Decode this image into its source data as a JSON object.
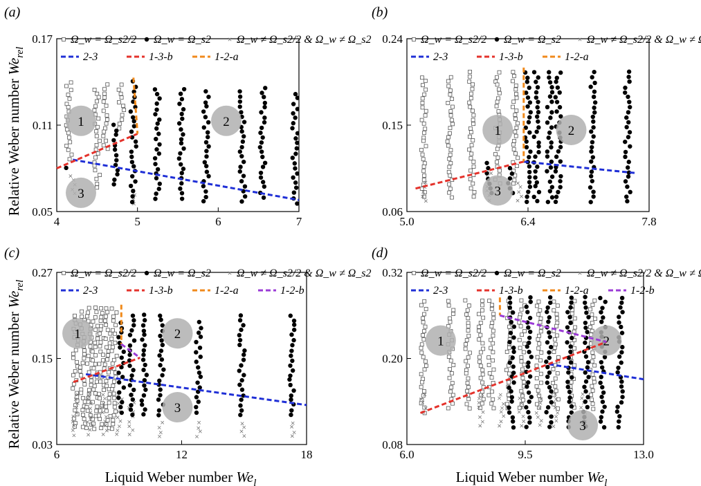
{
  "figure": {
    "ylabel_main": "Relative Weber number ",
    "ylabel_sym": "We",
    "ylabel_sub": "rel",
    "xlabel_main": "Liquid Weber number ",
    "xlabel_sym": "We",
    "xlabel_sub": "l",
    "legend_markers": [
      "Ω_w = Ω_s2/2",
      "Ω_w = Ω_s2",
      "Ω_w ≠ Ω_s2/2 & Ω_w ≠ Ω_s2"
    ],
    "colors": {
      "blue": "#1f2fd6",
      "red": "#e4322b",
      "orange": "#f08a1c",
      "purple": "#9b3bd6",
      "region": "#b0b0b0"
    }
  },
  "chart_data": [
    {
      "type": "scatter",
      "panel": "(a)",
      "xlim": [
        4,
        7
      ],
      "ylim": [
        0.05,
        0.17
      ],
      "xticks": [
        "4",
        "5",
        "6",
        "7"
      ],
      "yticks": [
        "0.05",
        "0.11",
        "0.17"
      ],
      "legend_lines": [
        "2-3",
        "1-3-b",
        "1-2-a"
      ],
      "regions": [
        {
          "label": "1",
          "x": 4.3,
          "y": 0.113
        },
        {
          "label": "2",
          "x": 6.1,
          "y": 0.113
        },
        {
          "label": "3",
          "x": 4.3,
          "y": 0.063
        }
      ],
      "lines": [
        {
          "name": "2-3",
          "color": "blue",
          "x": [
            4.2,
            7.0
          ],
          "y": [
            0.086,
            0.058
          ]
        },
        {
          "name": "1-3-b",
          "color": "red",
          "x": [
            4.0,
            5.0
          ],
          "y": [
            0.08,
            0.104
          ]
        },
        {
          "name": "1-2-a",
          "color": "orange",
          "x": [
            4.95,
            5.0
          ],
          "y": [
            0.143,
            0.104
          ]
        }
      ],
      "series_data": {
        "half": [
          [
            4.15,
            0.14,
            0.086
          ],
          [
            4.6,
            0.138,
            0.093
          ],
          [
            4.8,
            0.138,
            0.106
          ],
          [
            4.5,
            0.135,
            0.065
          ]
        ],
        "full": [
          [
            4.95,
            0.14,
            0.055
          ],
          [
            5.25,
            0.135,
            0.058
          ],
          [
            5.55,
            0.135,
            0.058
          ],
          [
            5.85,
            0.133,
            0.056
          ],
          [
            6.3,
            0.133,
            0.056
          ],
          [
            6.55,
            0.136,
            0.058
          ],
          [
            6.95,
            0.132,
            0.055
          ],
          [
            4.72,
            0.11,
            0.066
          ],
          [
            4.13,
            0.08,
            0.08
          ]
        ],
        "cross": [
          [
            4.2,
            0.075,
            0.06
          ],
          [
            4.95,
            0.065,
            0.055
          ]
        ]
      }
    },
    {
      "type": "scatter",
      "panel": "(b)",
      "xlim": [
        5.0,
        7.8
      ],
      "ylim": [
        0.06,
        0.24
      ],
      "xticks": [
        "5.0",
        "6.4",
        "7.8"
      ],
      "yticks": [
        "0.06",
        "0.15",
        "0.24"
      ],
      "legend_lines": [
        "2-3",
        "1-3-b",
        "1-2-a"
      ],
      "regions": [
        {
          "label": "1",
          "x": 6.05,
          "y": 0.145
        },
        {
          "label": "2",
          "x": 6.9,
          "y": 0.145
        },
        {
          "label": "3",
          "x": 6.05,
          "y": 0.082
        }
      ],
      "lines": [
        {
          "name": "2-3",
          "color": "blue",
          "x": [
            6.35,
            7.65
          ],
          "y": [
            0.112,
            0.1
          ]
        },
        {
          "name": "1-3-b",
          "color": "red",
          "x": [
            5.1,
            6.35
          ],
          "y": [
            0.084,
            0.112
          ]
        },
        {
          "name": "1-2-a",
          "color": "orange",
          "x": [
            6.35,
            6.35
          ],
          "y": [
            0.21,
            0.112
          ]
        }
      ],
      "series_data": {
        "half": [
          [
            5.2,
            0.2,
            0.075
          ],
          [
            5.5,
            0.2,
            0.075
          ],
          [
            5.75,
            0.205,
            0.075
          ],
          [
            6.05,
            0.205,
            0.085
          ],
          [
            6.25,
            0.205,
            0.085
          ]
        ],
        "full": [
          [
            6.4,
            0.205,
            0.07
          ],
          [
            6.5,
            0.205,
            0.07
          ],
          [
            6.65,
            0.205,
            0.07
          ],
          [
            6.75,
            0.205,
            0.07
          ],
          [
            7.15,
            0.205,
            0.07
          ],
          [
            7.55,
            0.205,
            0.07
          ],
          [
            5.95,
            0.11,
            0.075
          ],
          [
            6.2,
            0.105,
            0.075
          ]
        ],
        "cross": [
          [
            5.2,
            0.09,
            0.07
          ],
          [
            5.95,
            0.1,
            0.07
          ],
          [
            6.3,
            0.09,
            0.07
          ]
        ]
      }
    },
    {
      "type": "scatter",
      "panel": "(c)",
      "xlim": [
        6,
        18
      ],
      "ylim": [
        0.03,
        0.27
      ],
      "xticks": [
        "6",
        "12",
        "18"
      ],
      "yticks": [
        "0.03",
        "0.15",
        "0.27"
      ],
      "legend_lines": [
        "2-3",
        "1-3-b",
        "1-2-a",
        "1-2-b"
      ],
      "regions": [
        {
          "label": "1",
          "x": 7.0,
          "y": 0.185
        },
        {
          "label": "2",
          "x": 11.8,
          "y": 0.185
        },
        {
          "label": "3",
          "x": 11.8,
          "y": 0.082
        }
      ],
      "lines": [
        {
          "name": "2-3",
          "color": "blue",
          "x": [
            7.4,
            18.0
          ],
          "y": [
            0.128,
            0.085
          ]
        },
        {
          "name": "1-3-b",
          "color": "red",
          "x": [
            6.8,
            10.0
          ],
          "y": [
            0.117,
            0.151
          ]
        },
        {
          "name": "1-2-a",
          "color": "orange",
          "x": [
            9.1,
            9.1
          ],
          "y": [
            0.225,
            0.17
          ]
        },
        {
          "name": "1-2-b",
          "color": "purple",
          "x": [
            9.1,
            10.0
          ],
          "y": [
            0.17,
            0.151
          ]
        }
      ],
      "series_data": {
        "half": [
          [
            6.9,
            0.21,
            0.05
          ],
          [
            7.25,
            0.215,
            0.05
          ],
          [
            7.55,
            0.22,
            0.05
          ],
          [
            7.85,
            0.22,
            0.05
          ],
          [
            8.15,
            0.22,
            0.05
          ],
          [
            8.45,
            0.22,
            0.05
          ],
          [
            8.75,
            0.22,
            0.05
          ]
        ],
        "full": [
          [
            9.6,
            0.21,
            0.07
          ],
          [
            10.2,
            0.21,
            0.07
          ],
          [
            11.0,
            0.21,
            0.07
          ],
          [
            12.8,
            0.2,
            0.07
          ],
          [
            14.9,
            0.21,
            0.07
          ],
          [
            17.3,
            0.21,
            0.07
          ],
          [
            9.1,
            0.2,
            0.07
          ]
        ],
        "cross": [
          [
            6.9,
            0.1,
            0.04
          ],
          [
            7.6,
            0.1,
            0.04
          ],
          [
            8.3,
            0.1,
            0.04
          ],
          [
            9.0,
            0.1,
            0.04
          ],
          [
            9.6,
            0.1,
            0.04
          ],
          [
            11.0,
            0.06,
            0.04
          ],
          [
            12.8,
            0.06,
            0.04
          ],
          [
            14.9,
            0.06,
            0.04
          ],
          [
            17.3,
            0.06,
            0.04
          ]
        ]
      }
    },
    {
      "type": "scatter",
      "panel": "(d)",
      "xlim": [
        6.0,
        13.0
      ],
      "ylim": [
        0.08,
        0.32
      ],
      "xticks": [
        "6.0",
        "9.5",
        "13.0"
      ],
      "yticks": [
        "0.08",
        "0.20",
        "0.32"
      ],
      "legend_lines": [
        "2-3",
        "1-3-b",
        "1-2-a",
        "1-2-b"
      ],
      "regions": [
        {
          "label": "1",
          "x": 7.0,
          "y": 0.225
        },
        {
          "label": "2",
          "x": 11.9,
          "y": 0.225
        },
        {
          "label": "3",
          "x": 11.2,
          "y": 0.107
        }
      ],
      "lines": [
        {
          "name": "2-3",
          "color": "blue",
          "x": [
            10.2,
            13.0
          ],
          "y": [
            0.192,
            0.171
          ]
        },
        {
          "name": "1-3-b",
          "color": "red",
          "x": [
            6.4,
            11.9
          ],
          "y": [
            0.124,
            0.223
          ]
        },
        {
          "name": "1-2-a",
          "color": "orange",
          "x": [
            8.75,
            8.75
          ],
          "y": [
            0.285,
            0.26
          ]
        },
        {
          "name": "1-2-b",
          "color": "purple",
          "x": [
            8.75,
            11.9
          ],
          "y": [
            0.26,
            0.223
          ]
        }
      ],
      "series_data": {
        "half": [
          [
            6.5,
            0.28,
            0.12
          ],
          [
            7.3,
            0.28,
            0.13
          ],
          [
            7.8,
            0.28,
            0.13
          ],
          [
            8.2,
            0.28,
            0.13
          ],
          [
            8.5,
            0.28,
            0.13
          ],
          [
            9.0,
            0.28,
            0.13
          ],
          [
            9.4,
            0.28,
            0.13
          ],
          [
            9.9,
            0.28,
            0.13
          ],
          [
            10.4,
            0.28,
            0.13
          ],
          [
            10.9,
            0.28,
            0.13
          ],
          [
            11.5,
            0.28,
            0.13
          ]
        ],
        "full": [
          [
            9.1,
            0.285,
            0.1
          ],
          [
            9.6,
            0.285,
            0.1
          ],
          [
            10.2,
            0.285,
            0.1
          ],
          [
            10.8,
            0.285,
            0.1
          ],
          [
            11.3,
            0.285,
            0.1
          ],
          [
            11.8,
            0.285,
            0.1
          ],
          [
            12.3,
            0.285,
            0.1
          ]
        ],
        "cross": [
          [
            6.5,
            0.15,
            0.12
          ],
          [
            8.2,
            0.15,
            0.1
          ],
          [
            8.8,
            0.15,
            0.1
          ],
          [
            9.4,
            0.15,
            0.1
          ],
          [
            9.9,
            0.15,
            0.1
          ],
          [
            10.4,
            0.15,
            0.1
          ],
          [
            11.2,
            0.15,
            0.1
          ]
        ]
      }
    }
  ]
}
